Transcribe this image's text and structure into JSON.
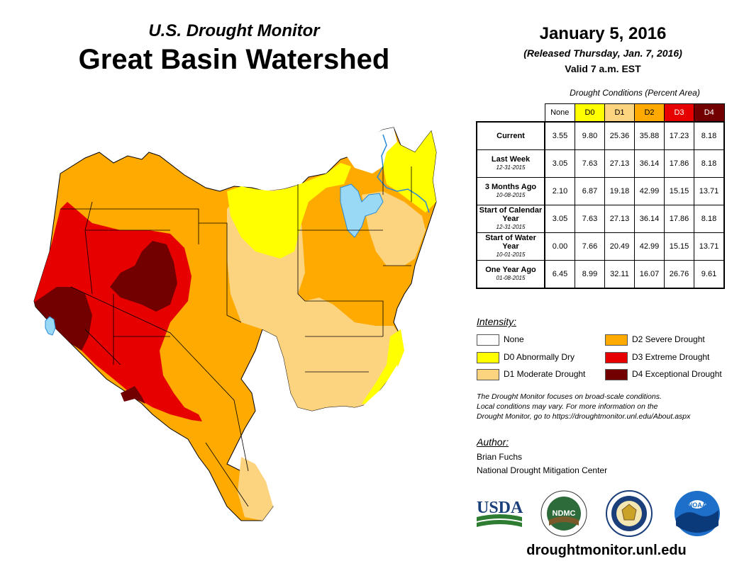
{
  "header": {
    "subtitle": "U.S. Drought Monitor",
    "title": "Great Basin Watershed",
    "date": "January 5, 2016",
    "released": "(Released Thursday, Jan. 7, 2016)",
    "valid": "Valid 7 a.m. EST"
  },
  "table": {
    "caption": "Drought Conditions (Percent Area)",
    "columns": [
      "None",
      "D0",
      "D1",
      "D2",
      "D3",
      "D4"
    ],
    "column_colors": [
      "#ffffff",
      "#ffff00",
      "#fcd37f",
      "#ffaa00",
      "#e60000",
      "#730000"
    ],
    "rows": [
      {
        "label": "Current",
        "date": "",
        "values": [
          "3.55",
          "9.80",
          "25.36",
          "35.88",
          "17.23",
          "8.18"
        ]
      },
      {
        "label": "Last Week",
        "date": "12-31-2015",
        "values": [
          "3.05",
          "7.63",
          "27.13",
          "36.14",
          "17.86",
          "8.18"
        ]
      },
      {
        "label": "3 Months Ago",
        "date": "10-08-2015",
        "values": [
          "2.10",
          "6.87",
          "19.18",
          "42.99",
          "15.15",
          "13.71"
        ]
      },
      {
        "label": "Start of Calendar Year",
        "date": "12-31-2015",
        "values": [
          "3.05",
          "7.63",
          "27.13",
          "36.14",
          "17.86",
          "8.18"
        ]
      },
      {
        "label": "Start of Water Year",
        "date": "10-01-2015",
        "values": [
          "0.00",
          "7.66",
          "20.49",
          "42.99",
          "15.15",
          "13.71"
        ]
      },
      {
        "label": "One Year Ago",
        "date": "01-08-2015",
        "values": [
          "6.45",
          "8.99",
          "32.11",
          "16.07",
          "26.76",
          "9.61"
        ]
      }
    ]
  },
  "legend": {
    "heading": "Intensity:",
    "items": [
      {
        "label": "None",
        "color": "#ffffff"
      },
      {
        "label": "D0 Abnormally Dry",
        "color": "#ffff00"
      },
      {
        "label": "D1 Moderate Drought",
        "color": "#fcd37f"
      },
      {
        "label": "D2 Severe Drought",
        "color": "#ffaa00"
      },
      {
        "label": "D3 Extreme Drought",
        "color": "#e60000"
      },
      {
        "label": "D4 Exceptional Drought",
        "color": "#730000"
      }
    ]
  },
  "note": {
    "line1": "The Drought Monitor focuses on broad-scale conditions.",
    "line2": "Local conditions may vary. For more information on the",
    "line3": "Drought Monitor, go to https://droughtmonitor.unl.edu/About.aspx"
  },
  "author": {
    "heading": "Author:",
    "name": "Brian Fuchs",
    "org": "National Drought Mitigation Center"
  },
  "logos": {
    "usda": "USDA",
    "ndmc": "NDMC",
    "noaa": "NOAA"
  },
  "map_colors": {
    "none": "#ffffff",
    "d0": "#ffff00",
    "d1": "#fcd37f",
    "d2": "#ffaa00",
    "d3": "#e60000",
    "d4": "#730000",
    "water": "#9ad9f5",
    "river": "#2a8ad6"
  },
  "footer": {
    "url": "droughtmonitor.unl.edu"
  }
}
